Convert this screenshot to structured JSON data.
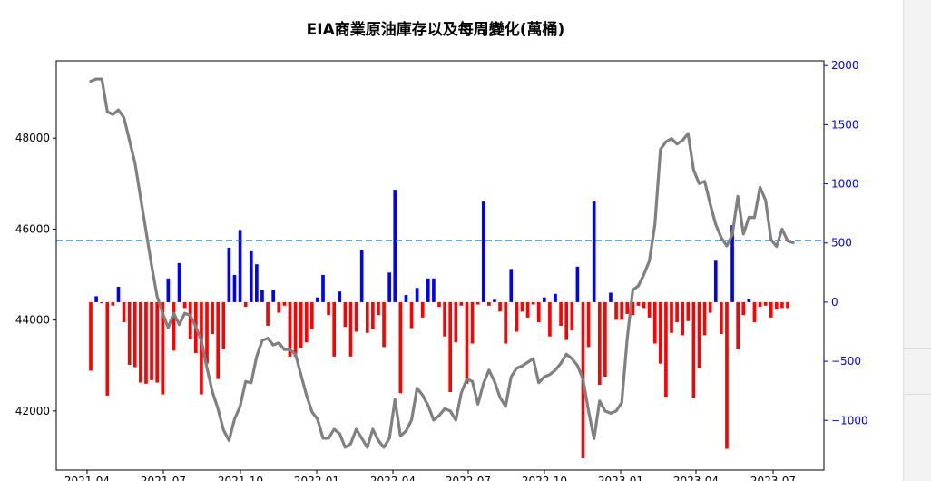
{
  "chart_data": {
    "type": "bar+line",
    "title": "EIA商業原油庫存以及每周變化(萬桶)",
    "x_tick_labels": [
      "2021-04",
      "2021-07",
      "2021-10",
      "2022-01",
      "2022-04",
      "2022-07",
      "2022-10",
      "2023-01",
      "2023-04",
      "2023-07"
    ],
    "y_left": {
      "ticks": [
        42000,
        44000,
        46000,
        48000
      ],
      "range": [
        40700,
        49700
      ],
      "color": "#000000"
    },
    "y_right": {
      "ticks": [
        -1000,
        -500,
        0,
        500,
        1000,
        1500,
        2000
      ],
      "range": [
        -1420,
        2040
      ],
      "color": "#0000ff"
    },
    "reference_line": {
      "axis": "right",
      "value": 520,
      "color": "#1f77b4",
      "style": "dashed"
    },
    "series": [
      {
        "axis": "left",
        "type": "line",
        "color": "#808080",
        "values": [
          49250,
          49300,
          49300,
          48580,
          48520,
          48620,
          48450,
          47950,
          47450,
          46700,
          45950,
          45200,
          44520,
          44150,
          43830,
          44150,
          43900,
          44150,
          44100,
          43850,
          43550,
          42950,
          42420,
          42050,
          41580,
          41350,
          41820,
          42100,
          42650,
          42620,
          43200,
          43550,
          43600,
          43450,
          43500,
          43350,
          43350,
          43250,
          42800,
          42350,
          41980,
          41820,
          41400,
          41400,
          41600,
          41500,
          41200,
          41280,
          41600,
          41400,
          41200,
          41600,
          41350,
          41200,
          41400,
          42250,
          41450,
          41560,
          41800,
          42500,
          42350,
          42120,
          41800,
          41900,
          42050,
          42000,
          41800,
          42400,
          42700,
          42650,
          42150,
          42600,
          42900,
          42650,
          42300,
          42100,
          42750,
          42940,
          42990,
          43070,
          43150,
          42620,
          42750,
          42800,
          42900,
          43050,
          43250,
          43150,
          43000,
          42700,
          42000,
          41390,
          42220,
          42000,
          41950,
          42000,
          42180,
          43600,
          44660,
          44750,
          45000,
          45300,
          46100,
          47750,
          47920,
          47990,
          47870,
          47950,
          48100,
          47300,
          47000,
          47050,
          46550,
          46100,
          45810,
          45630,
          45880,
          46720,
          45890,
          46260,
          46250,
          46920,
          46640,
          45770,
          45620,
          46000,
          45740,
          45700
        ]
      },
      {
        "axis": "right",
        "type": "bar",
        "values": [
          -580,
          50,
          -10,
          -790,
          -30,
          130,
          -170,
          -530,
          -550,
          -680,
          -690,
          -660,
          -680,
          -780,
          200,
          -410,
          330,
          -50,
          -310,
          -430,
          -780,
          -520,
          -270,
          -650,
          -400,
          460,
          230,
          610,
          -40,
          430,
          320,
          100,
          -200,
          100,
          -90,
          -30,
          -460,
          -460,
          -390,
          -340,
          -230,
          40,
          230,
          -110,
          -460,
          90,
          -210,
          -460,
          -250,
          440,
          -260,
          -230,
          -110,
          -380,
          250,
          950,
          -770,
          60,
          -220,
          120,
          -130,
          200,
          200,
          -40,
          -290,
          -760,
          -340,
          -30,
          -690,
          -350,
          -20,
          850,
          -30,
          20,
          -80,
          -350,
          280,
          -250,
          -80,
          -130,
          -20,
          -170,
          40,
          -290,
          70,
          -200,
          -320,
          -240,
          300,
          -1320,
          -380,
          850,
          -700,
          -630,
          80,
          -150,
          -150,
          -100,
          -110,
          -30,
          -50,
          -130,
          -350,
          -520,
          -800,
          -260,
          -170,
          -280,
          -160,
          -810,
          -560,
          -280,
          -90,
          350,
          -270,
          -1240,
          650,
          -400,
          -110,
          30,
          -170,
          -40,
          -30,
          -130,
          -60,
          -50,
          -50
        ]
      }
    ]
  }
}
